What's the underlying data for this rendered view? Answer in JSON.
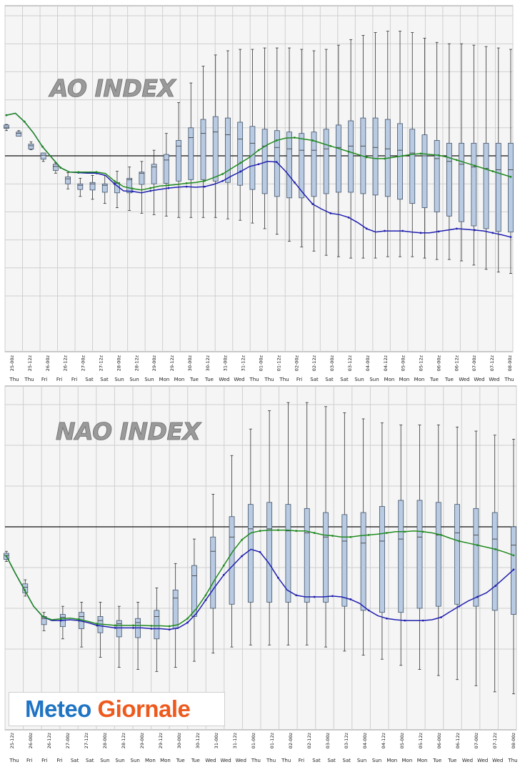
{
  "chart_data": [
    {
      "type": "boxplot",
      "title": "AO INDEX",
      "x_labels": [
        "25-00z",
        "25-12z",
        "26-00z",
        "26-12z",
        "27-00z",
        "27-12z",
        "28-00z",
        "28-12z",
        "29-00z",
        "29-12z",
        "30-00z",
        "30-12z",
        "31-00z",
        "31-12z",
        "01-00z",
        "01-12z",
        "02-00z",
        "02-12z",
        "03-00z",
        "03-12z",
        "04-00z",
        "04-12z",
        "05-00z",
        "05-12z",
        "06-00z",
        "06-12z",
        "07-00z",
        "07-12z",
        "08-00z"
      ],
      "day_labels": [
        "Thu",
        "Thu",
        "Fri",
        "Fri",
        "Fri",
        "Sat",
        "Sat",
        "Sun",
        "Sun",
        "Sun",
        "Mon",
        "Mon",
        "Tue",
        "Tue",
        "Wed",
        "Wed",
        "Thu",
        "Thu",
        "Thu",
        "Fri",
        "Sat",
        "Sat",
        "Sat",
        "Sun",
        "Sun",
        "Mon",
        "Mon",
        "Mon",
        "Tue",
        "Tue",
        "Wed",
        "Wed",
        "Wed",
        "Thu"
      ],
      "x_steps": 57,
      "y_lines": 12,
      "zero_line": 5,
      "ylim": [
        -8.0,
        4.5
      ],
      "series": [
        {
          "name": "control",
          "color": "#2020b0",
          "values": [
            1.45,
            1.52,
            1.22,
            0.82,
            0.33,
            -0.05,
            -0.42,
            -0.58,
            -0.6,
            -0.62,
            -0.62,
            -0.7,
            -1.0,
            -1.25,
            -1.27,
            -1.32,
            -1.25,
            -1.2,
            -1.15,
            -1.12,
            -1.1,
            -1.12,
            -1.1,
            -1.02,
            -0.9,
            -0.72,
            -0.56,
            -0.38,
            -0.3,
            -0.2,
            -0.22,
            -0.55,
            -0.95,
            -1.35,
            -1.72,
            -1.9,
            -2.05,
            -2.1,
            -2.2,
            -2.38,
            -2.6,
            -2.72,
            -2.68,
            -2.68,
            -2.68,
            -2.72,
            -2.75,
            -2.75,
            -2.7,
            -2.65,
            -2.6,
            -2.62,
            -2.65,
            -2.68,
            -2.75,
            -2.82,
            -2.9
          ]
        },
        {
          "name": "ensemble-mean",
          "color": "#208a20",
          "values": [
            1.45,
            1.52,
            1.22,
            0.82,
            0.33,
            -0.05,
            -0.42,
            -0.58,
            -0.58,
            -0.58,
            -0.58,
            -0.63,
            -0.9,
            -1.1,
            -1.17,
            -1.22,
            -1.15,
            -1.08,
            -1.05,
            -1.02,
            -0.98,
            -0.95,
            -0.9,
            -0.78,
            -0.65,
            -0.45,
            -0.25,
            -0.05,
            0.2,
            0.4,
            0.55,
            0.63,
            0.65,
            0.6,
            0.55,
            0.45,
            0.35,
            0.25,
            0.15,
            0.05,
            -0.05,
            -0.1,
            -0.1,
            -0.05,
            0.0,
            0.05,
            0.08,
            0.05,
            0.02,
            -0.05,
            -0.15,
            -0.25,
            -0.35,
            -0.45,
            -0.55,
            -0.65,
            -0.75
          ]
        }
      ],
      "boxes": [
        [
          0.9,
          0.98,
          1.02,
          1.06,
          1.1,
          1.12
        ],
        [
          0.9,
          0.85,
          0.8,
          0.75,
          0.7,
          0.72
        ],
        [
          0.5,
          0.42,
          0.36,
          0.3,
          0.24,
          0.22
        ],
        [
          0.1,
          0.1,
          0.02,
          -0.05,
          -0.12,
          -0.2
        ],
        [
          -0.25,
          -0.3,
          -0.38,
          -0.45,
          -0.52,
          -0.62
        ],
        [
          -0.6,
          -0.75,
          -0.82,
          -0.92,
          -1.0,
          -1.18
        ],
        [
          -0.8,
          -1.0,
          -1.05,
          -1.15,
          -1.2,
          -1.45
        ],
        [
          -0.7,
          -0.95,
          -1.0,
          -1.12,
          -1.22,
          -1.55
        ],
        [
          -0.7,
          -1.0,
          -1.05,
          -1.15,
          -1.3,
          -1.7
        ],
        [
          -0.55,
          -0.95,
          -0.98,
          -1.08,
          -1.32,
          -1.85
        ],
        [
          -0.4,
          -0.8,
          -0.85,
          -0.92,
          -1.32,
          -1.95
        ],
        [
          -0.2,
          -0.58,
          -0.62,
          -0.72,
          -1.02,
          -2.05
        ],
        [
          0.2,
          -0.3,
          -0.4,
          -0.58,
          -1.0,
          -2.1
        ],
        [
          0.8,
          0.05,
          -0.15,
          -0.38,
          -0.98,
          -2.15
        ],
        [
          1.9,
          0.55,
          0.35,
          -0.1,
          -0.9,
          -2.2
        ],
        [
          2.6,
          1.0,
          0.65,
          0.1,
          -0.85,
          -2.2
        ],
        [
          3.2,
          1.3,
          0.8,
          0.15,
          -0.85,
          -2.2
        ],
        [
          3.6,
          1.4,
          0.85,
          0.1,
          -0.9,
          -2.2
        ],
        [
          3.75,
          1.35,
          0.75,
          0.0,
          -0.95,
          -2.25
        ],
        [
          3.8,
          1.2,
          0.6,
          -0.1,
          -1.05,
          -2.3
        ],
        [
          3.8,
          1.05,
          0.45,
          -0.25,
          -1.2,
          -2.4
        ],
        [
          3.85,
          0.95,
          0.35,
          -0.35,
          -1.35,
          -2.6
        ],
        [
          3.85,
          0.9,
          0.3,
          -0.4,
          -1.45,
          -2.8
        ],
        [
          3.85,
          0.85,
          0.25,
          -0.45,
          -1.5,
          -3.05
        ],
        [
          3.8,
          0.8,
          0.2,
          -0.5,
          -1.5,
          -3.25
        ],
        [
          3.75,
          0.85,
          0.2,
          -0.5,
          -1.45,
          -3.4
        ],
        [
          3.8,
          0.95,
          0.25,
          -0.45,
          -1.35,
          -3.55
        ],
        [
          3.95,
          1.1,
          0.3,
          -0.4,
          -1.3,
          -3.6
        ],
        [
          4.15,
          1.25,
          0.35,
          -0.35,
          -1.3,
          -3.65
        ],
        [
          4.3,
          1.35,
          0.35,
          -0.35,
          -1.35,
          -3.65
        ],
        [
          4.4,
          1.35,
          0.3,
          -0.4,
          -1.4,
          -3.65
        ],
        [
          4.45,
          1.3,
          0.25,
          -0.45,
          -1.45,
          -3.6
        ],
        [
          4.45,
          1.15,
          0.2,
          -0.55,
          -1.55,
          -3.6
        ],
        [
          4.4,
          0.95,
          0.1,
          -0.65,
          -1.7,
          -3.6
        ],
        [
          4.2,
          0.75,
          0.0,
          -0.75,
          -1.85,
          -3.65
        ],
        [
          4.05,
          0.55,
          -0.1,
          -0.85,
          -2.0,
          -3.7
        ],
        [
          4.0,
          0.45,
          -0.2,
          -0.95,
          -2.15,
          -3.7
        ],
        [
          4.0,
          0.45,
          -0.3,
          -1.1,
          -2.35,
          -3.75
        ],
        [
          3.95,
          0.45,
          -0.4,
          -1.3,
          -2.5,
          -3.9
        ],
        [
          3.9,
          0.45,
          -0.45,
          -1.45,
          -2.6,
          -4.05
        ],
        [
          3.85,
          0.45,
          -0.5,
          -1.55,
          -2.7,
          -4.15
        ],
        [
          3.8,
          0.45,
          -0.5,
          -1.6,
          -2.72,
          -4.2
        ]
      ]
    },
    {
      "type": "boxplot",
      "title": "NAO INDEX",
      "x_labels": [
        "25-12z",
        "26-00z",
        "26-12z",
        "27-00z",
        "27-12z",
        "28-00z",
        "28-12z",
        "29-00z",
        "29-12z",
        "30-00z",
        "30-12z",
        "31-00z",
        "31-12z",
        "01-00z",
        "01-12z",
        "02-00z",
        "02-12z",
        "03-00z",
        "03-12z",
        "04-00z",
        "04-12z",
        "05-00z",
        "05-12z",
        "06-00z",
        "06-12z",
        "07-00z",
        "07-12z",
        "08-00z"
      ],
      "day_labels": [
        "Thu",
        "Fri",
        "Fri",
        "Fri",
        "Sat",
        "Sat",
        "Sun",
        "Sun",
        "Sun",
        "Mon",
        "Mon",
        "Tue",
        "Tue",
        "Wed",
        "Wed",
        "Wed",
        "Thu",
        "Thu",
        "Thu",
        "Fri",
        "Sat",
        "Sat",
        "Sat",
        "Sun",
        "Sun",
        "Mon",
        "Mon",
        "Mon",
        "Tue",
        "Tue",
        "Wed",
        "Wed",
        "Wed",
        "Thu"
      ],
      "x_steps": 57,
      "y_lines": 8,
      "zero_line": 3,
      "ylim": [
        -4.2,
        3.0
      ],
      "series": [
        {
          "name": "control",
          "color": "#2020b0",
          "values": [
            -0.72,
            -1.15,
            -1.55,
            -1.95,
            -2.2,
            -2.3,
            -2.3,
            -2.28,
            -2.3,
            -2.35,
            -2.42,
            -2.45,
            -2.48,
            -2.48,
            -2.48,
            -2.48,
            -2.5,
            -2.5,
            -2.52,
            -2.48,
            -2.35,
            -2.12,
            -1.8,
            -1.48,
            -1.18,
            -0.95,
            -0.72,
            -0.55,
            -0.62,
            -0.9,
            -1.25,
            -1.55,
            -1.68,
            -1.72,
            -1.72,
            -1.72,
            -1.7,
            -1.72,
            -1.78,
            -1.88,
            -2.05,
            -2.18,
            -2.25,
            -2.28,
            -2.3,
            -2.3,
            -2.3,
            -2.28,
            -2.22,
            -2.08,
            -1.95,
            -1.82,
            -1.72,
            -1.62,
            -1.45,
            -1.25,
            -1.05
          ]
        },
        {
          "name": "ensemble-mean",
          "color": "#208a20",
          "values": [
            -0.72,
            -1.15,
            -1.55,
            -1.95,
            -2.2,
            -2.28,
            -2.26,
            -2.24,
            -2.27,
            -2.32,
            -2.38,
            -2.4,
            -2.42,
            -2.42,
            -2.42,
            -2.42,
            -2.43,
            -2.43,
            -2.44,
            -2.4,
            -2.25,
            -2.0,
            -1.68,
            -1.3,
            -0.95,
            -0.6,
            -0.32,
            -0.15,
            -0.1,
            -0.08,
            -0.08,
            -0.08,
            -0.1,
            -0.1,
            -0.15,
            -0.2,
            -0.22,
            -0.25,
            -0.25,
            -0.22,
            -0.2,
            -0.18,
            -0.15,
            -0.12,
            -0.12,
            -0.1,
            -0.12,
            -0.15,
            -0.2,
            -0.28,
            -0.35,
            -0.4,
            -0.45,
            -0.5,
            -0.55,
            -0.62,
            -0.7
          ]
        }
      ],
      "boxes": [
        [
          -0.6,
          -0.65,
          -0.7,
          -0.75,
          -0.8,
          -0.85
        ],
        [
          -1.3,
          -1.4,
          -1.48,
          -1.55,
          -1.62,
          -1.7
        ],
        [
          -2.1,
          -2.2,
          -2.25,
          -2.3,
          -2.4,
          -2.55
        ],
        [
          -1.95,
          -2.15,
          -2.22,
          -2.3,
          -2.45,
          -2.75
        ],
        [
          -1.85,
          -2.1,
          -2.2,
          -2.3,
          -2.5,
          -2.95
        ],
        [
          -1.85,
          -2.2,
          -2.3,
          -2.42,
          -2.6,
          -3.2
        ],
        [
          -1.95,
          -2.3,
          -2.38,
          -2.5,
          -2.7,
          -3.45
        ],
        [
          -1.85,
          -2.25,
          -2.35,
          -2.5,
          -2.72,
          -3.5
        ],
        [
          -1.5,
          -2.05,
          -2.2,
          -2.38,
          -2.75,
          -3.55
        ],
        [
          -0.9,
          -1.55,
          -1.75,
          -2.0,
          -2.5,
          -3.45
        ],
        [
          -0.3,
          -0.95,
          -1.2,
          -1.55,
          -2.2,
          -3.3
        ],
        [
          0.8,
          -0.25,
          -0.6,
          -1.1,
          -2.0,
          -3.1
        ],
        [
          1.75,
          0.25,
          -0.25,
          -0.85,
          -1.9,
          -2.95
        ],
        [
          2.4,
          0.55,
          -0.05,
          -0.75,
          -1.85,
          -2.9
        ],
        [
          2.85,
          0.6,
          -0.05,
          -0.75,
          -1.85,
          -2.9
        ],
        [
          3.05,
          0.55,
          -0.1,
          -0.75,
          -1.85,
          -2.9
        ],
        [
          3.05,
          0.45,
          -0.15,
          -0.8,
          -1.85,
          -2.9
        ],
        [
          2.95,
          0.35,
          -0.25,
          -0.9,
          -1.85,
          -2.95
        ],
        [
          2.8,
          0.3,
          -0.35,
          -1.05,
          -1.95,
          -3.05
        ],
        [
          2.65,
          0.35,
          -0.4,
          -1.15,
          -2.05,
          -3.15
        ],
        [
          2.55,
          0.5,
          -0.35,
          -1.15,
          -2.1,
          -3.25
        ],
        [
          2.5,
          0.65,
          -0.3,
          -1.1,
          -2.1,
          -3.4
        ],
        [
          2.5,
          0.65,
          -0.25,
          -1.0,
          -2.0,
          -3.5
        ],
        [
          2.5,
          0.6,
          -0.2,
          -0.95,
          -1.95,
          -3.65
        ],
        [
          2.45,
          0.55,
          -0.15,
          -0.9,
          -1.9,
          -3.75
        ],
        [
          2.35,
          0.45,
          -0.2,
          -0.95,
          -1.95,
          -3.9
        ],
        [
          2.25,
          0.35,
          -0.3,
          -1.05,
          -2.05,
          -4.05
        ],
        [
          2.15,
          0.0,
          -0.45,
          -1.15,
          -2.15,
          -4.1
        ]
      ]
    }
  ],
  "logo": {
    "part1": "Meteo",
    "part2": "Giornale"
  }
}
